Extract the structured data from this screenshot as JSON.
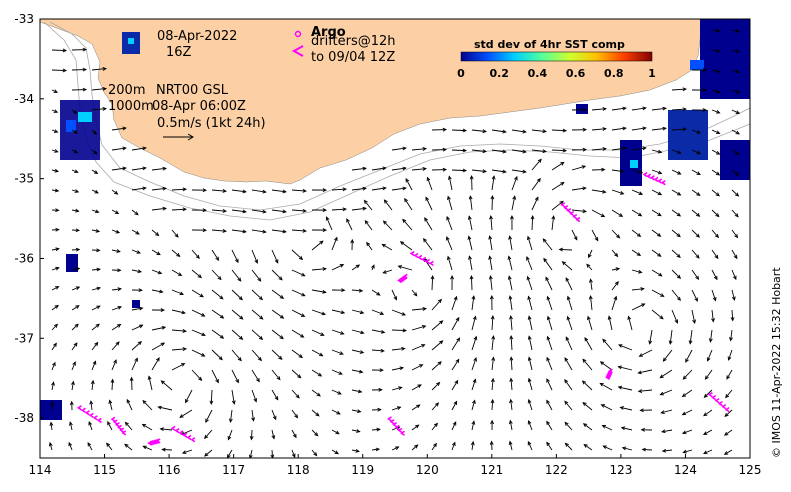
{
  "map": {
    "lon_range": [
      114,
      125
    ],
    "lat_range": [
      -38.5,
      -33
    ],
    "lon_ticks": [
      "114",
      "115",
      "116",
      "117",
      "118",
      "119",
      "120",
      "121",
      "122",
      "123",
      "124",
      "125"
    ],
    "lat_ticks": [
      "-33",
      "-34",
      "-35",
      "-36",
      "-37",
      "-38"
    ],
    "land_color": "#fcd0a4",
    "arrow_color": "#000000",
    "argo_color": "#ff00ff",
    "grid": false
  },
  "annotations": {
    "date": "08-Apr-2022",
    "hour": "16Z",
    "isobath_200": "200m",
    "isobath_1000": "1000m",
    "product": "NRT00 GSL",
    "product_time": "08-Apr 06:00Z",
    "scale_label": "0.5m/s (1kt 24h)"
  },
  "legend": {
    "argo_title": "Argo",
    "drifters_line1": "drifters@12h",
    "drifters_line2": "to 09/04 12Z"
  },
  "colorbar": {
    "title": "std dev of 4hr SST comp",
    "tick_labels": [
      "0",
      "0.2",
      "0.4",
      "0.6",
      "0.8",
      "1"
    ],
    "colormap": [
      "#00008f",
      "#0050ff",
      "#00cfff",
      "#50ff9f",
      "#cfff30",
      "#ffbf00",
      "#ff4000",
      "#800000"
    ]
  },
  "credit": "© IMOS 11-Apr-2022 15:32 Hobart",
  "drifter_tracks": [
    {
      "lon": 114.75,
      "lat": -37.95
    },
    {
      "lon": 115.2,
      "lat": -38.1
    },
    {
      "lon": 115.75,
      "lat": -38.3
    },
    {
      "lon": 116.2,
      "lat": -38.2
    },
    {
      "lon": 119.5,
      "lat": -38.1
    },
    {
      "lon": 119.6,
      "lat": -36.25
    },
    {
      "lon": 119.9,
      "lat": -36.0
    },
    {
      "lon": 122.2,
      "lat": -35.42
    },
    {
      "lon": 122.8,
      "lat": -37.45
    },
    {
      "lon": 123.5,
      "lat": -35.0
    },
    {
      "lon": 124.5,
      "lat": -37.8
    }
  ]
}
